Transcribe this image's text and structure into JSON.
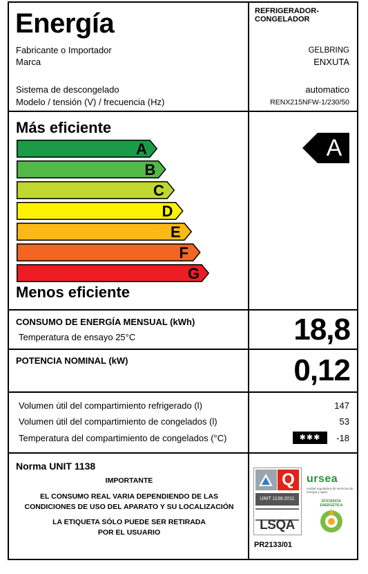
{
  "header": {
    "title": "Energía",
    "appliance_type": "REFRIGERADOR-\nCONGELADOR",
    "manufacturer_label": "Fabricante o Importador",
    "brand_label": "Marca",
    "manufacturer_value": "GELBRING",
    "brand_value": "ENXUTA",
    "defrost_label": "Sistema de descongelado",
    "model_label": "Modelo / tensión (V) / frecuencia (Hz)",
    "defrost_value": "automatico",
    "model_value": "RENX215NFW-1/230/50"
  },
  "efficiency": {
    "top_label": "Más eficiente",
    "bottom_label": "Menos eficiente",
    "classes": [
      {
        "letter": "A",
        "color": "#1a9b48"
      },
      {
        "letter": "B",
        "color": "#52b848"
      },
      {
        "letter": "C",
        "color": "#bfd730"
      },
      {
        "letter": "D",
        "color": "#fff200"
      },
      {
        "letter": "E",
        "color": "#fcb814"
      },
      {
        "letter": "F",
        "color": "#f26522"
      },
      {
        "letter": "G",
        "color": "#ed1c24"
      }
    ],
    "rating": "A"
  },
  "consumption": {
    "label": "CONSUMO DE ENERGÍA MENSUAL (kWh)",
    "sub_label": "Temperatura de ensayo 25°C",
    "value": "18,8"
  },
  "power": {
    "label": "POTENCIA NOMINAL (kW)",
    "value": "0,12"
  },
  "volumes": {
    "refrigerated_label": "Volumen útil del compartimiento refrigerado (l)",
    "refrigerated_value": "147",
    "freezer_label": "Volumen útil del compartimiento de congelados (l)",
    "freezer_value": "53",
    "temp_label": "Temperatura del compartimiento de congelados (°C)",
    "temp_value": "-18",
    "stars": "✱✱✱"
  },
  "footer": {
    "norma": "Norma UNIT 1138",
    "importante": "IMPORTANTE",
    "notice1_line1": "EL CONSUMO REAL VARIA DEPENDIENDO DE LAS",
    "notice1_line2": "CONDICIONES DE USO DEL APARATO Y SU LOCALIZACIÓN",
    "notice2_line1": "LA ETIQUETA SÓLO PUEDE SER RETIRADA",
    "notice2_line2": "POR EL USUARIO",
    "unit_text": "UNIT 1138:2011",
    "lsqa": "LSQA",
    "ursea": "ursea",
    "ursea_sub": "unidad reguladora de servicios de energía y agua",
    "eficiencia": "EFICIENCIA ENERGÉTICA",
    "cert_code": "PR2133/01"
  }
}
